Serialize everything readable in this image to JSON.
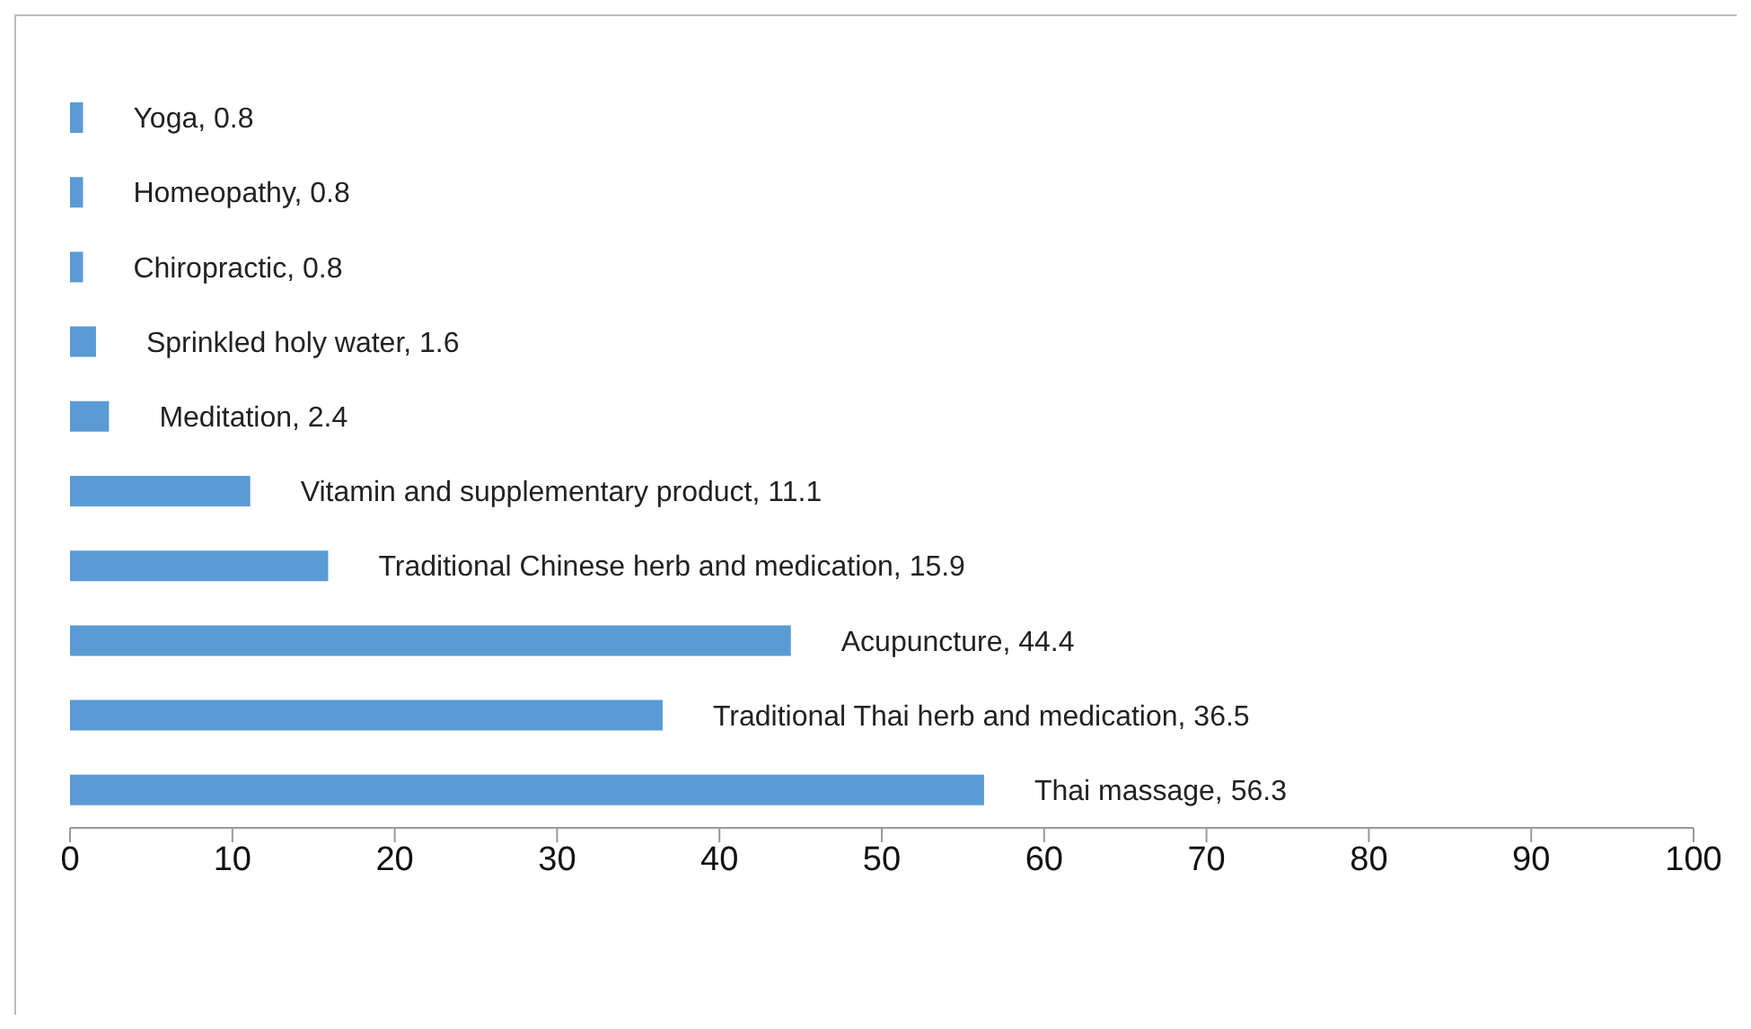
{
  "chart_data": {
    "type": "bar",
    "orientation": "horizontal",
    "categories": [
      null,
      null,
      null,
      null,
      null,
      null,
      null,
      null,
      null,
      null
    ],
    "values": [
      0.8,
      0.8,
      0.8,
      1.6,
      2.4,
      11.1,
      15.9,
      44.4,
      36.5,
      56.3
    ],
    "value_labels": [
      "Yoga, 0.8",
      "Homeopathy, 0.8",
      "Chiropractic, 0.8",
      "Sprinkled holy water, 1.6",
      "Meditation, 2.4",
      "Vitamin and supplementary product, 11.1",
      "Traditional Chinese herb and medication, 15.9",
      "Acupuncture, 44.4",
      "Traditional Thai herb and medication, 36.5",
      "Thai massage, 56.3"
    ],
    "color": "#5b9bd5",
    "xlim": [
      0,
      100
    ],
    "xticks": [
      0,
      10,
      20,
      30,
      40,
      50,
      60,
      70,
      80,
      90,
      100
    ],
    "tick_labels": "x"
  }
}
